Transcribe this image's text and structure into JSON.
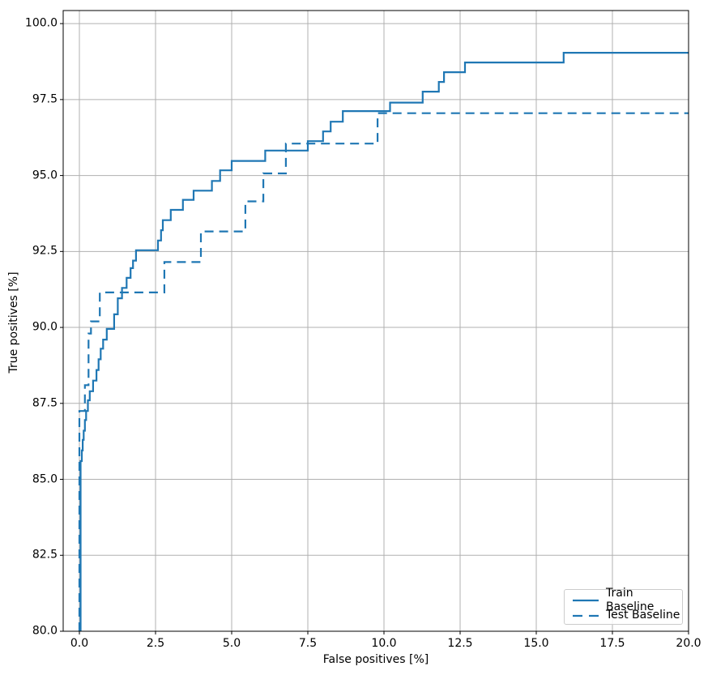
{
  "chart_data": {
    "type": "line",
    "subtype": "step-roc",
    "title": "",
    "xlabel": "False positives [%]",
    "ylabel": "True positives [%]",
    "xlim": [
      -0.532,
      20
    ],
    "ylim": [
      80,
      100.43
    ],
    "grid": true,
    "grid_color": "#b0b0b0",
    "line_color": "#1f77b4",
    "spine_color": "#000000",
    "x_ticks": {
      "values": [
        0,
        2.5,
        5,
        7.5,
        10,
        12.5,
        15,
        17.5,
        20
      ],
      "labels": [
        "0.0",
        "2.5",
        "5.0",
        "7.5",
        "10.0",
        "12.5",
        "15.0",
        "17.5",
        "20.0"
      ]
    },
    "y_ticks": {
      "values": [
        80,
        82.5,
        85,
        87.5,
        90,
        92.5,
        95,
        97.5,
        100
      ],
      "labels": [
        "80.0",
        "82.5",
        "85.0",
        "87.5",
        "90.0",
        "92.5",
        "95.0",
        "97.5",
        "100.0"
      ]
    },
    "legend": {
      "position": "lower right",
      "entries": [
        {
          "label": "Train Baseline",
          "style": "solid"
        },
        {
          "label": "Test Baseline",
          "style": "dashed"
        }
      ]
    },
    "series": [
      {
        "name": "Train Baseline",
        "style": "solid",
        "points": [
          [
            0.04,
            80
          ],
          [
            0.04,
            85.6
          ],
          [
            0.08,
            85.95
          ],
          [
            0.11,
            86.3
          ],
          [
            0.14,
            86.6
          ],
          [
            0.18,
            86.95
          ],
          [
            0.22,
            87.25
          ],
          [
            0.28,
            87.6
          ],
          [
            0.34,
            87.9
          ],
          [
            0.45,
            88.25
          ],
          [
            0.56,
            88.6
          ],
          [
            0.63,
            88.95
          ],
          [
            0.7,
            89.3
          ],
          [
            0.78,
            89.6
          ],
          [
            0.9,
            89.95
          ],
          [
            1.14,
            90.43
          ],
          [
            1.26,
            90.96
          ],
          [
            1.4,
            91.3
          ],
          [
            1.55,
            91.63
          ],
          [
            1.68,
            91.95
          ],
          [
            1.76,
            92.2
          ],
          [
            1.86,
            92.54
          ],
          [
            2.58,
            92.86
          ],
          [
            2.68,
            93.2
          ],
          [
            2.74,
            93.53
          ],
          [
            3.0,
            93.87
          ],
          [
            3.4,
            94.2
          ],
          [
            3.75,
            94.5
          ],
          [
            4.35,
            94.82
          ],
          [
            4.62,
            95.17
          ],
          [
            5.0,
            95.48
          ],
          [
            6.1,
            95.82
          ],
          [
            7.5,
            96.13
          ],
          [
            8.0,
            96.45
          ],
          [
            8.25,
            96.77
          ],
          [
            8.65,
            97.12
          ],
          [
            10.2,
            97.4
          ],
          [
            11.27,
            97.76
          ],
          [
            11.8,
            98.08
          ],
          [
            11.97,
            98.4
          ],
          [
            12.66,
            98.72
          ],
          [
            15.9,
            99.04
          ],
          [
            20.0,
            99.04
          ]
        ]
      },
      {
        "name": "Test Baseline",
        "style": "dashed",
        "points": [
          [
            0.0,
            80
          ],
          [
            0.0,
            87.25
          ],
          [
            0.18,
            88.1
          ],
          [
            0.3,
            89.8
          ],
          [
            0.38,
            90.2
          ],
          [
            0.67,
            91.15
          ],
          [
            2.79,
            92.15
          ],
          [
            3.99,
            93.16
          ],
          [
            5.45,
            94.15
          ],
          [
            6.04,
            95.07
          ],
          [
            6.78,
            96.05
          ],
          [
            9.79,
            97.05
          ],
          [
            20.0,
            97.05
          ]
        ]
      }
    ]
  }
}
